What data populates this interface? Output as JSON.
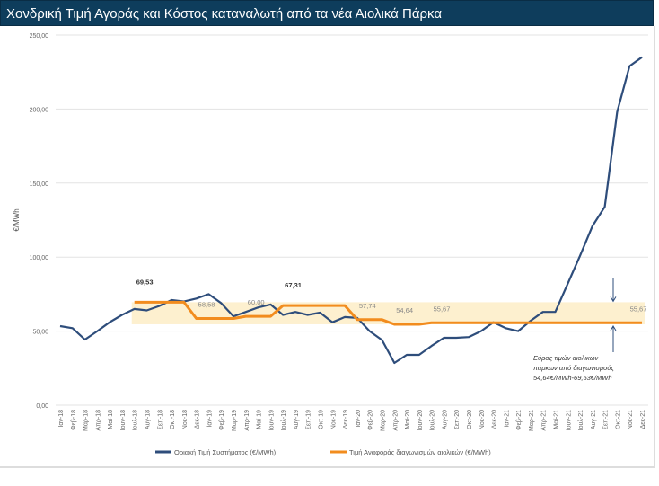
{
  "chart_data": {
    "type": "line",
    "title": "Χονδρική Τιμή Αγοράς  και Κόστος καταναλωτή από τα νέα Αιολικά Πάρκα",
    "ylabel": "€/MWh",
    "ylim": [
      0,
      250
    ],
    "yticks": [
      "0,00",
      "50,00",
      "100,00",
      "150,00",
      "200,00",
      "250,00"
    ],
    "grid": true,
    "legend_position": "bottom",
    "categories": [
      "Ιαν-18",
      "Φεβ-18",
      "Μαρ-18",
      "Απρ-18",
      "Μαϊ-18",
      "Ιουν-18",
      "Ιουλ-18",
      "Αυγ-18",
      "Σεπ-18",
      "Οκτ-18",
      "Νοε-18",
      "Δεκ-18",
      "Ιαν-19",
      "Φεβ-19",
      "Μαρ-19",
      "Απρ-19",
      "Μαϊ-19",
      "Ιουν-19",
      "Ιουλ-19",
      "Αυγ-19",
      "Σεπ-19",
      "Οκτ-19",
      "Νοε-19",
      "Δεκ-19",
      "Ιαν-20",
      "Φεβ-20",
      "Μαρ-20",
      "Απρ-20",
      "Μαϊ-20",
      "Ιουν-20",
      "Ιουλ-20",
      "Αυγ-20",
      "Σεπ-20",
      "Οκτ-20",
      "Νοε-20",
      "Δεκ-20",
      "Ιαν-21",
      "Φεβ-21",
      "Μαρ-21",
      "Απρ-21",
      "Μαϊ-21",
      "Ιουν-21",
      "Ιουλ-21",
      "Αυγ-21",
      "Σεπ-21",
      "Οκτ-21",
      "Νοε-21",
      "Δεκ-21"
    ],
    "series": [
      {
        "name": "Οριακή Τιμή Συστήματος (€/MWh)",
        "color": "#2e4d7b",
        "values": [
          53.4,
          52,
          44.3,
          50,
          56,
          61,
          65,
          64,
          67,
          71,
          70,
          72,
          75,
          69,
          60,
          63,
          66,
          68,
          61,
          63,
          61,
          62.5,
          56,
          59.5,
          58.9,
          50,
          44,
          28.5,
          34,
          34,
          40,
          45.5,
          45.5,
          46,
          50,
          56,
          52,
          50,
          57,
          63,
          63,
          82,
          101,
          121,
          134,
          198,
          229,
          235
        ]
      },
      {
        "name": "Τιμή Αναφοράς διαγωνισμών αιολικών (€/MWh)",
        "color": "#f28c1e",
        "values": [
          null,
          null,
          null,
          null,
          null,
          null,
          69.53,
          69.53,
          69.53,
          69.53,
          69.53,
          58.58,
          58.58,
          58.58,
          58.58,
          60.0,
          60.0,
          60.0,
          67.31,
          67.31,
          67.31,
          67.31,
          67.31,
          67.31,
          57.74,
          57.74,
          57.74,
          54.64,
          54.64,
          54.64,
          55.67,
          55.67,
          55.67,
          55.67,
          55.67,
          55.67,
          55.67,
          55.67,
          55.67,
          55.67,
          55.67,
          55.67,
          55.67,
          55.67,
          55.67,
          55.67,
          55.67,
          55.67
        ]
      }
    ],
    "band": {
      "low": 54.64,
      "high": 69.53,
      "from": "Ιουλ-18",
      "to": "Δεκ-21",
      "color": "#fdf0cf"
    },
    "data_labels": [
      {
        "index": 6,
        "value": 69.53,
        "text": "69,53",
        "bold": true
      },
      {
        "index": 11,
        "value": 58.58,
        "text": "58,58"
      },
      {
        "index": 15,
        "value": 60.0,
        "text": "60,00"
      },
      {
        "index": 18,
        "value": 67.31,
        "text": "67,31",
        "bold": true
      },
      {
        "index": 24,
        "value": 57.74,
        "text": "57,74"
      },
      {
        "index": 27,
        "value": 54.64,
        "text": "54,64"
      },
      {
        "index": 30,
        "value": 55.67,
        "text": "55,67"
      },
      {
        "index": 47,
        "value": 55.67,
        "text": "55,67"
      }
    ],
    "annotation": [
      "Εύρος τιμών αιολικών",
      "πάρκων από διαγωνισμούς",
      "54,64€/MWh-69,53€/MWh"
    ]
  }
}
